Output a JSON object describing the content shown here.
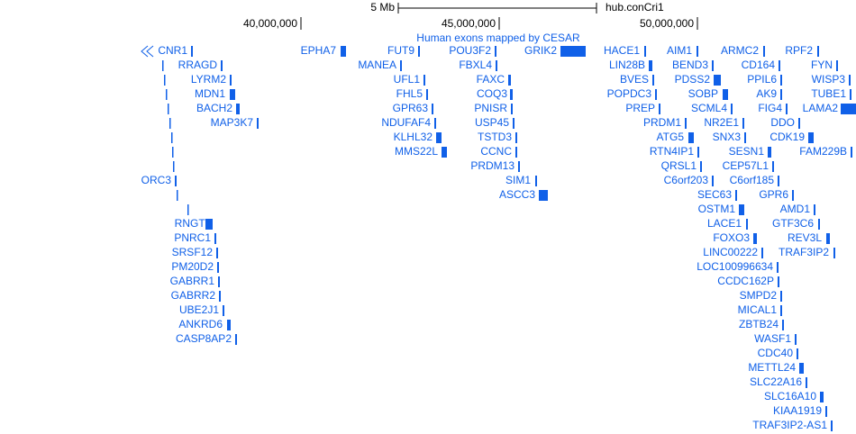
{
  "ruler": {
    "scale_label": "5 Mb",
    "assembly": "hub.conCri1",
    "ticks": [
      "40,000,000",
      "45,000,000",
      "50,000,000"
    ]
  },
  "track": {
    "label": "Human exons mapped by CESAR",
    "genes": [
      "CNR1",
      "RRAGD",
      "LYRM2",
      "MDN1",
      "BACH2",
      "MAP3K7",
      "ORC3",
      "RNGTT",
      "PNRC1",
      "SRSF12",
      "PM20D2",
      "GABRR1",
      "GABRR2",
      "UBE2J1",
      "ANKRD6",
      "CASP8AP2",
      "EPHA7",
      "FUT9",
      "MANEA",
      "UFL1",
      "FHL5",
      "GPR63",
      "NDUFAF4",
      "KLHL32",
      "MMS22L",
      "POU3F2",
      "FBXL4",
      "FAXC",
      "COQ3",
      "PNISR",
      "USP45",
      "TSTD3",
      "CCNC",
      "PRDM13",
      "SIM1",
      "ASCC3",
      "GRIK2",
      "HACE1",
      "LIN28B",
      "BVES",
      "POPDC3",
      "PREP",
      "PRDM1",
      "ATG5",
      "RTN4IP1",
      "QRSL1",
      "C6orf203",
      "SEC63",
      "OSTM1",
      "LACE1",
      "FOXO3",
      "LINC00222",
      "LOC100996634",
      "CCDC162P",
      "SMPD2",
      "MICAL1",
      "ZBTB24",
      "WASF1",
      "CDC40",
      "METTL24",
      "SLC22A16",
      "SLC16A10",
      "KIAA1919",
      "TRAF3IP2-AS1",
      "AIM1",
      "BEND3",
      "PDSS2",
      "SOBP",
      "SCML4",
      "NR2E1",
      "SNX3",
      "SESN1",
      "CEP57L1",
      "C6orf185",
      "GPR6",
      "AMD1",
      "GTF3C6",
      "REV3L",
      "TRAF3IP2",
      "ARMC2",
      "CD164",
      "PPIL6",
      "AK9",
      "FIG4",
      "DDO",
      "CDK19",
      "FAM229B",
      "RPF2",
      "FYN",
      "WISP3",
      "TUBE1",
      "LAMA2"
    ]
  }
}
